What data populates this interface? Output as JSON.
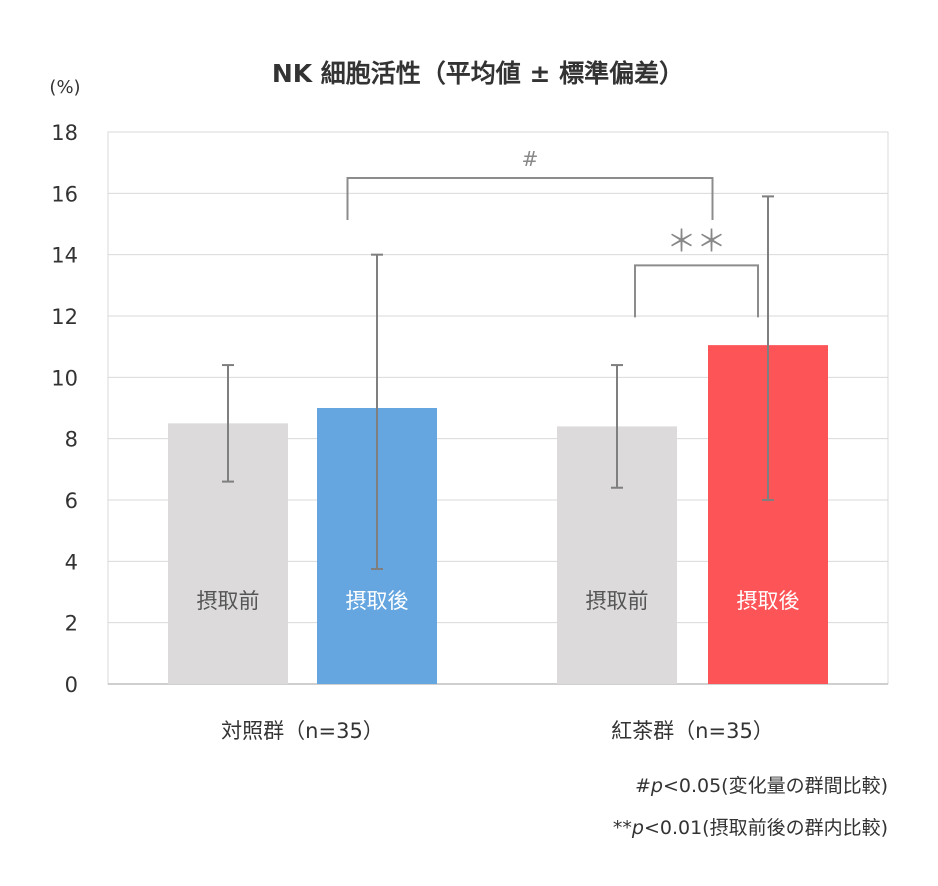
{
  "chart_data": {
    "type": "bar",
    "title": "NK 細胞活性（平均値 ± 標準偏差）",
    "ylabel": "(%)",
    "ylim": [
      0,
      18
    ],
    "yticks": [
      0,
      2,
      4,
      6,
      8,
      10,
      12,
      14,
      16,
      18
    ],
    "grid": true,
    "categories": [
      "対照群（n=35）",
      "紅茶群（n=35）"
    ],
    "series": [
      {
        "name": "摂取前",
        "color": "#dcdadb",
        "text_color": "#555555",
        "values": [
          8.5,
          8.4
        ],
        "err_low": [
          6.6,
          6.4
        ],
        "err_high": [
          10.4,
          10.4
        ]
      },
      {
        "name": "摂取後",
        "color_by_group": [
          "#65a6e0",
          "#fd5458"
        ],
        "text_color": "#ffffff",
        "values": [
          9.0,
          11.05
        ],
        "err_low": [
          3.75,
          6.0
        ],
        "err_high": [
          14.0,
          15.9
        ]
      }
    ],
    "annotations": [
      {
        "symbol": "#",
        "spans": "between groups (change)",
        "y": 16.5
      },
      {
        "symbol": "＊＊",
        "spans": "紅茶群 before vs after",
        "y": 13.65
      }
    ],
    "notes": [
      {
        "prefix": "#",
        "p": "p",
        "rest": "<0.05(変化量の群間比較)"
      },
      {
        "prefix": "**",
        "p": "p",
        "rest": "<0.01(摂取前後の群内比較)"
      }
    ]
  }
}
